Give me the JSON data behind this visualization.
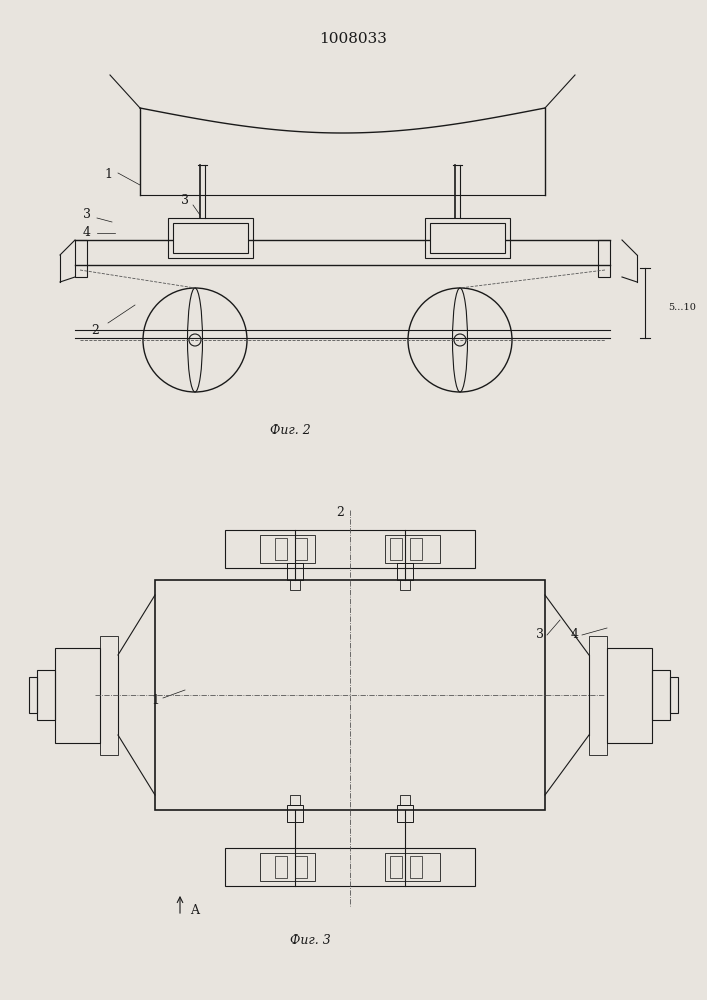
{
  "title": "1008033",
  "fig2_label": "Фиг. 2",
  "fig3_label": "Фиг. 3",
  "background_color": "#e8e4de",
  "line_color": "#1a1a1a",
  "title_fontsize": 11,
  "label_fontsize": 9,
  "annotation_fontsize": 9
}
